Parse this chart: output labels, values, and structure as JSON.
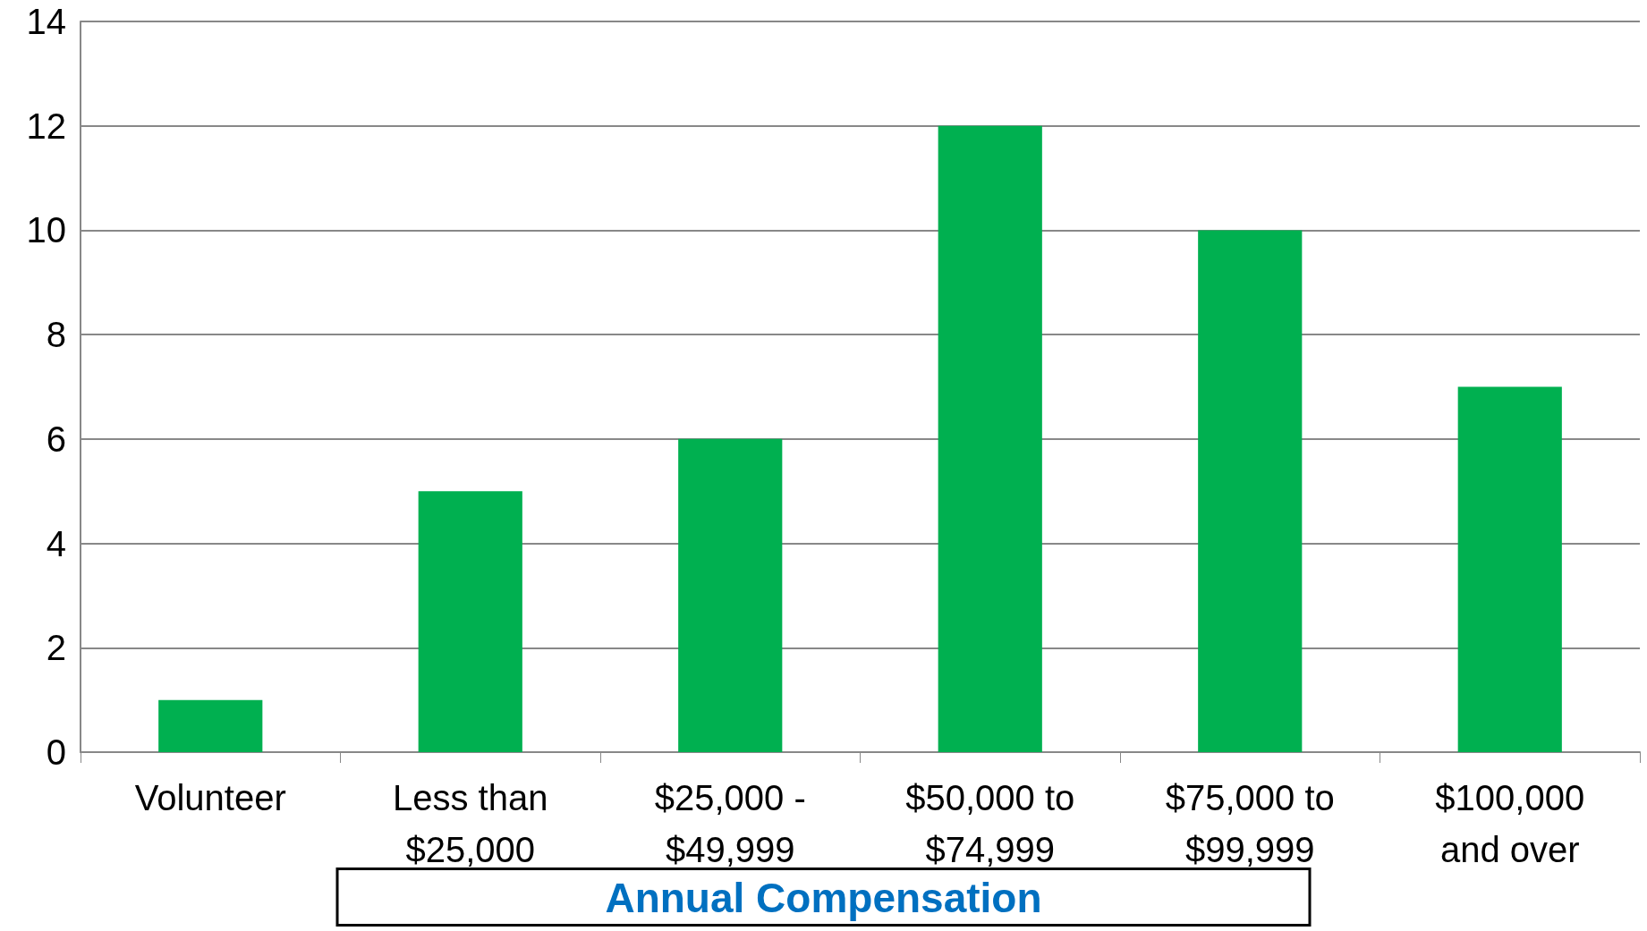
{
  "chart_data": {
    "type": "bar",
    "xlabel": "Annual Compensation",
    "categories": [
      "Volunteer",
      "Less than $25,000",
      "$25,000 - $49,999",
      "$50,000 to $74,999",
      "$75,000 to $99,999",
      "$100,000 and over"
    ],
    "values": [
      1,
      5,
      6,
      12,
      10,
      7
    ],
    "color": "#00b050",
    "ylim": [
      0,
      14
    ],
    "yticks": [
      0,
      2,
      4,
      6,
      8,
      10,
      12,
      14
    ],
    "grid": "y"
  }
}
